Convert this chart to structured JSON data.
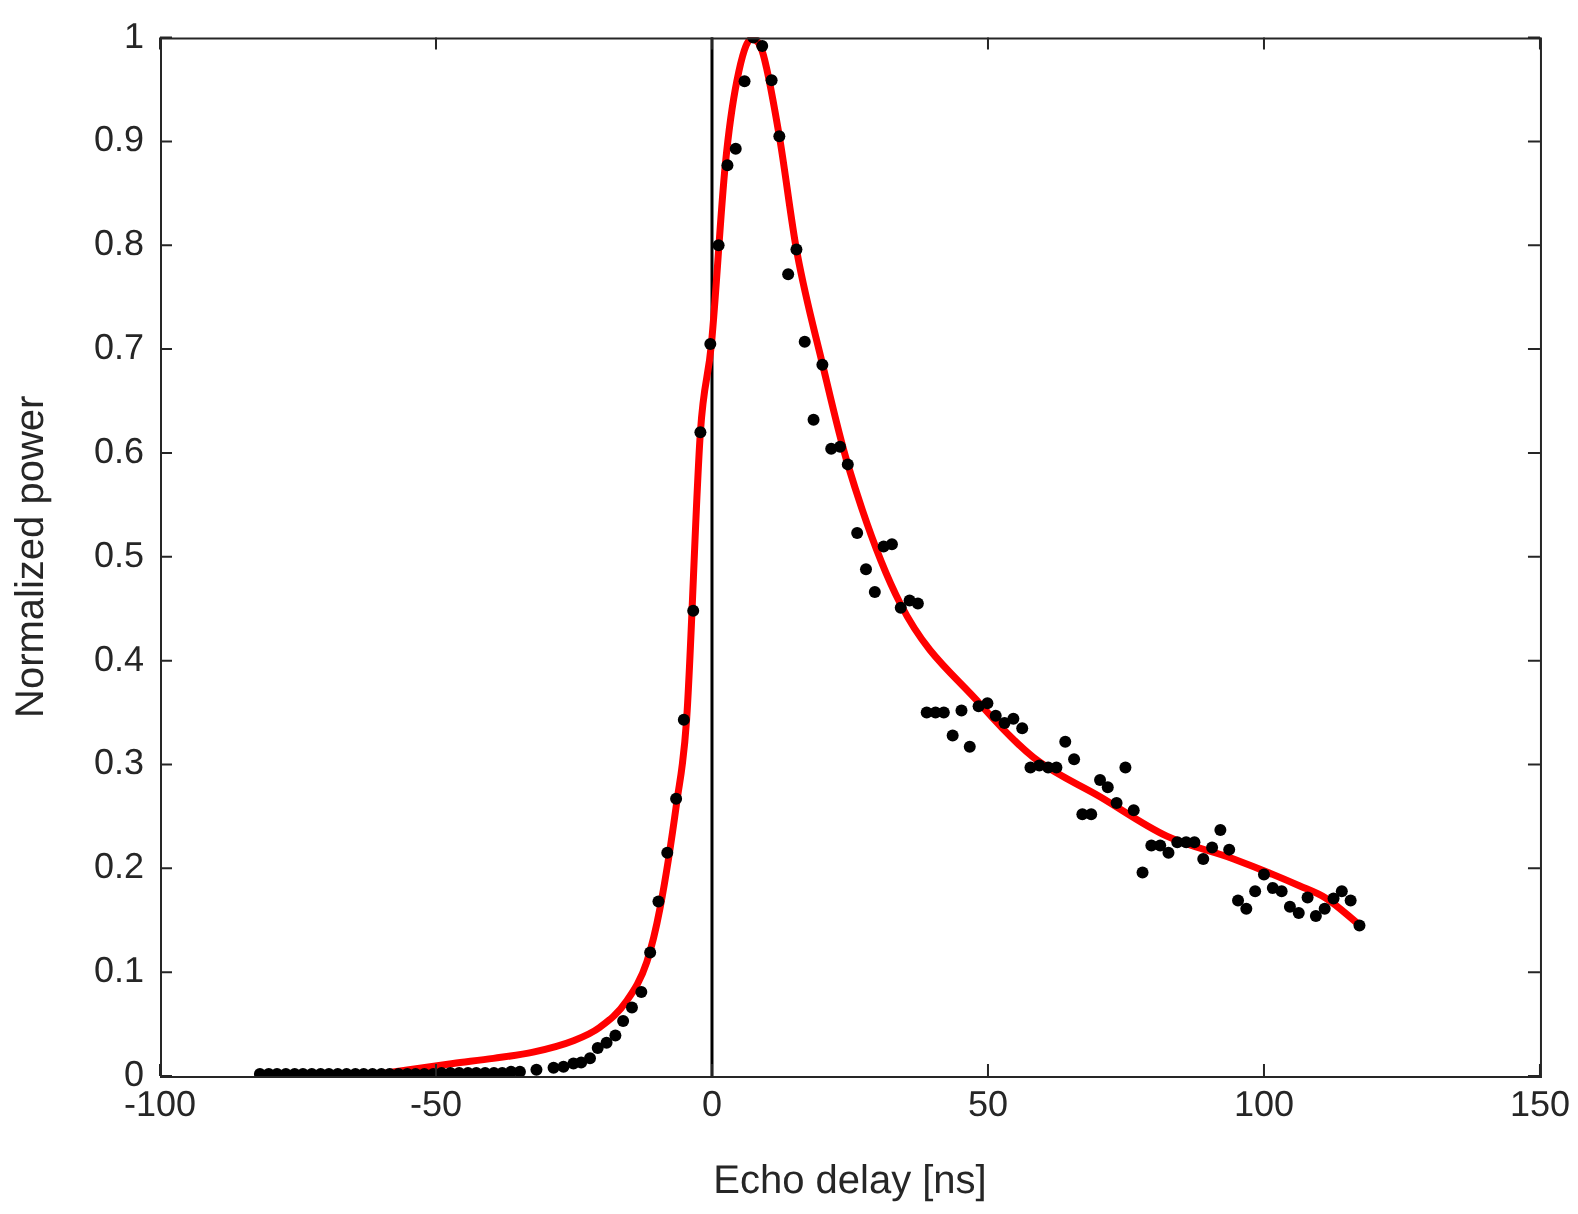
{
  "chart_data": {
    "type": "scatter",
    "xlabel": "Echo delay [ns]",
    "ylabel": "Normalized power",
    "xlim": [
      -100,
      150
    ],
    "xticks": [
      -100,
      -50,
      0,
      50,
      100,
      150
    ],
    "ylim": [
      0,
      1
    ],
    "yticks": [
      0,
      0.1,
      0.2,
      0.3,
      0.4,
      0.5,
      0.6,
      0.7,
      0.8,
      0.9,
      1
    ],
    "grid": false,
    "legend": false,
    "ref_lines": [
      {
        "axis": "x",
        "value": 0,
        "color": "#000000"
      }
    ],
    "series": [
      {
        "type": "scatter",
        "color": "#000000",
        "marker": "circle",
        "x": [
          -81.9,
          -80.3,
          -78.8,
          -77.2,
          -75.6,
          -74.1,
          -72.5,
          -70.9,
          -69.4,
          -67.8,
          -66.2,
          -64.6,
          -63.1,
          -61.5,
          -59.9,
          -58.4,
          -56.8,
          -55.2,
          -53.7,
          -52.1,
          -50.5,
          -49.0,
          -47.4,
          -45.8,
          -44.2,
          -42.7,
          -41.1,
          -39.5,
          -38.0,
          -36.4,
          -34.8,
          -31.8,
          -28.7,
          -26.9,
          -25.1,
          -23.7,
          -22.1,
          -20.7,
          -19.1,
          -17.5,
          -16.1,
          -14.5,
          -12.8,
          -11.2,
          -9.7,
          -8.1,
          -6.5,
          -5.1,
          -3.4,
          -2.1,
          -0.3,
          1.2,
          2.8,
          4.3,
          5.9,
          7.5,
          9.1,
          10.8,
          12.2,
          13.8,
          15.3,
          16.8,
          18.4,
          20.0,
          21.6,
          23.2,
          24.6,
          26.3,
          27.9,
          29.5,
          31.1,
          32.6,
          34.2,
          35.8,
          37.3,
          38.9,
          40.5,
          42.0,
          43.6,
          45.2,
          46.7,
          48.3,
          49.9,
          51.4,
          53.0,
          54.6,
          56.2,
          57.7,
          59.3,
          60.9,
          62.4,
          64.0,
          65.6,
          67.1,
          68.7,
          70.3,
          71.7,
          73.3,
          74.9,
          76.4,
          78.0,
          79.6,
          81.2,
          82.7,
          84.3,
          85.9,
          87.4,
          89.0,
          90.6,
          92.1,
          93.7,
          95.3,
          96.8,
          98.4,
          100.0,
          101.6,
          103.2,
          104.7,
          106.3,
          107.9,
          109.4,
          111.0,
          112.6,
          114.1,
          115.7,
          117.3
        ],
        "values": [
          0.002,
          0.002,
          0.002,
          0.002,
          0.002,
          0.002,
          0.002,
          0.002,
          0.002,
          0.002,
          0.002,
          0.002,
          0.002,
          0.002,
          0.002,
          0.002,
          0.002,
          0.002,
          0.002,
          0.002,
          0.002,
          0.003,
          0.003,
          0.003,
          0.003,
          0.003,
          0.003,
          0.003,
          0.003,
          0.004,
          0.004,
          0.006,
          0.008,
          0.009,
          0.012,
          0.013,
          0.017,
          0.027,
          0.032,
          0.039,
          0.053,
          0.066,
          0.081,
          0.119,
          0.168,
          0.215,
          0.267,
          0.343,
          0.448,
          0.62,
          0.705,
          0.8,
          0.877,
          0.893,
          0.958,
          1.0,
          0.992,
          0.959,
          0.905,
          0.772,
          0.796,
          0.707,
          0.632,
          0.685,
          0.604,
          0.606,
          0.589,
          0.523,
          0.488,
          0.466,
          0.51,
          0.512,
          0.451,
          0.458,
          0.455,
          0.35,
          0.35,
          0.35,
          0.328,
          0.352,
          0.317,
          0.356,
          0.359,
          0.347,
          0.34,
          0.344,
          0.335,
          0.297,
          0.299,
          0.297,
          0.297,
          0.322,
          0.305,
          0.252,
          0.252,
          0.285,
          0.278,
          0.263,
          0.297,
          0.256,
          0.196,
          0.222,
          0.222,
          0.215,
          0.225,
          0.225,
          0.225,
          0.209,
          0.22,
          0.237,
          0.218,
          0.169,
          0.161,
          0.178,
          0.194,
          0.181,
          0.178,
          0.163,
          0.157,
          0.172,
          0.154,
          0.161,
          0.171,
          0.178,
          0.169,
          0.145
        ]
      },
      {
        "type": "line",
        "color": "#ff0000",
        "marker": "none",
        "line_style": "solid",
        "x": [
          -59,
          -46.9,
          -39.6,
          -32.4,
          -25.1,
          -20.3,
          -15.5,
          -11.8,
          -9.4,
          -6.4,
          -4.6,
          -2.1,
          -0.1,
          2.4,
          4.5,
          7.2,
          9.1,
          12.2,
          15.3,
          20.0,
          24.6,
          34.1,
          48.6,
          58.2,
          70.3,
          82.4,
          94.5,
          106.5,
          111.3,
          117.4
        ],
        "values": [
          0.003,
          0.012,
          0.017,
          0.023,
          0.034,
          0.047,
          0.072,
          0.11,
          0.162,
          0.263,
          0.343,
          0.62,
          0.705,
          0.877,
          0.958,
          0.999,
          0.987,
          0.905,
          0.796,
          0.686,
          0.589,
          0.455,
          0.358,
          0.307,
          0.269,
          0.231,
          0.209,
          0.183,
          0.171,
          0.145
        ]
      }
    ]
  }
}
